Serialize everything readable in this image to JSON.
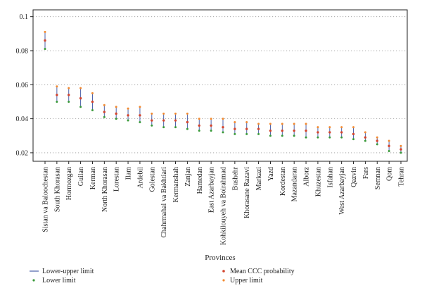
{
  "chart_data": {
    "type": "scatter",
    "xlabel": "Provinces",
    "ylabel": "",
    "ylim": [
      0.015,
      0.104
    ],
    "yticks": [
      0.02,
      0.04,
      0.06,
      0.08,
      0.1
    ],
    "ytick_labels": [
      "0.02",
      "0.04",
      "0.06",
      "0.08",
      "0.1"
    ],
    "grid": "horizontal dotted",
    "categories": [
      "Sistan va Baloochestan",
      "South Khorasan",
      "Hormozgan",
      "Guilan",
      "Kerman",
      "North Khorasan",
      "Lorestan",
      "Ilam",
      "Ardebil",
      "Golestan",
      "Chahrmahal va Bakhtiari",
      "Kermanshah",
      "Zanjan",
      "Hamedan",
      "East Azarbayjan",
      "Kohkilouyeh va Boirahmad",
      "Bushehr",
      "Khorasane Razavi",
      "Markazi",
      "Yazd",
      "Kordestan",
      "Mazandaran",
      "Alborz",
      "Khuzestan",
      "Isfahan",
      "West Azarbayjan",
      "Qazvin",
      "Fars",
      "Semnan",
      "Qom",
      "Tehran"
    ],
    "series": [
      {
        "name": "Lower limit",
        "values": [
          0.081,
          0.05,
          0.05,
          0.047,
          0.045,
          0.041,
          0.04,
          0.039,
          0.038,
          0.036,
          0.035,
          0.035,
          0.034,
          0.033,
          0.033,
          0.032,
          0.031,
          0.031,
          0.031,
          0.03,
          0.03,
          0.03,
          0.029,
          0.029,
          0.029,
          0.029,
          0.028,
          0.027,
          0.025,
          0.021,
          0.02
        ]
      },
      {
        "name": "Mean CCC probability",
        "values": [
          0.086,
          0.054,
          0.054,
          0.052,
          0.05,
          0.044,
          0.043,
          0.042,
          0.042,
          0.039,
          0.039,
          0.039,
          0.038,
          0.036,
          0.036,
          0.035,
          0.034,
          0.034,
          0.034,
          0.033,
          0.033,
          0.033,
          0.033,
          0.032,
          0.032,
          0.032,
          0.031,
          0.029,
          0.027,
          0.024,
          0.022
        ]
      },
      {
        "name": "Upper limit",
        "values": [
          0.091,
          0.059,
          0.058,
          0.058,
          0.055,
          0.048,
          0.047,
          0.046,
          0.047,
          0.043,
          0.043,
          0.043,
          0.043,
          0.04,
          0.04,
          0.04,
          0.038,
          0.038,
          0.037,
          0.037,
          0.037,
          0.037,
          0.037,
          0.035,
          0.035,
          0.035,
          0.035,
          0.032,
          0.029,
          0.027,
          0.024
        ]
      }
    ],
    "legend": {
      "placement": "bottom",
      "entries": [
        "Lower-upper limit",
        "Lower limit",
        "Mean CCC probability",
        "Upper limit"
      ]
    },
    "colors": {
      "range_line": "#4a5fa8",
      "lower": "#3a9a3a",
      "mean": "#d2452f",
      "upper": "#f28a30",
      "grid": "#999999"
    }
  }
}
